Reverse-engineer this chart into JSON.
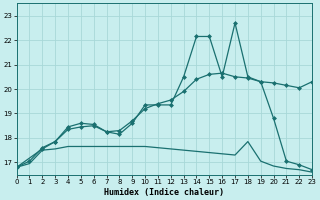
{
  "xlabel": "Humidex (Indice chaleur)",
  "background_color": "#c8eeee",
  "grid_color": "#a8d8d8",
  "line_color": "#1a7070",
  "xlim": [
    0,
    23
  ],
  "ylim": [
    16.5,
    23.5
  ],
  "yticks": [
    17,
    18,
    19,
    20,
    21,
    22,
    23
  ],
  "xticks": [
    0,
    1,
    2,
    3,
    4,
    5,
    6,
    7,
    8,
    9,
    10,
    11,
    12,
    13,
    14,
    15,
    16,
    17,
    18,
    19,
    20,
    21,
    22,
    23
  ],
  "line_jagged_x": [
    0,
    1,
    2,
    3,
    4,
    5,
    6,
    7,
    8,
    9,
    10,
    11,
    12,
    13,
    14,
    15,
    16,
    17,
    18,
    19,
    20,
    21,
    22,
    23
  ],
  "line_jagged_y": [
    16.8,
    17.05,
    17.6,
    17.85,
    18.45,
    18.6,
    18.55,
    18.25,
    18.15,
    18.6,
    19.35,
    19.35,
    19.35,
    20.5,
    22.15,
    22.15,
    20.5,
    22.7,
    20.5,
    20.3,
    18.8,
    17.05,
    16.9,
    16.7
  ],
  "line_rise_x": [
    0,
    2,
    3,
    4,
    5,
    6,
    7,
    8,
    9,
    10,
    11,
    12,
    13,
    14,
    15,
    16,
    17,
    18,
    19,
    20,
    21,
    22,
    23
  ],
  "line_rise_y": [
    16.8,
    17.55,
    17.85,
    18.35,
    18.45,
    18.5,
    18.25,
    18.3,
    18.7,
    19.2,
    19.4,
    19.55,
    19.9,
    20.4,
    20.6,
    20.65,
    20.5,
    20.45,
    20.3,
    20.25,
    20.15,
    20.05,
    20.3
  ],
  "line_flat_x": [
    0,
    1,
    2,
    3,
    4,
    5,
    6,
    7,
    8,
    9,
    10,
    11,
    12,
    13,
    14,
    15,
    16,
    17,
    18,
    19,
    20,
    21,
    22,
    23
  ],
  "line_flat_y": [
    16.8,
    16.95,
    17.5,
    17.55,
    17.65,
    17.65,
    17.65,
    17.65,
    17.65,
    17.65,
    17.65,
    17.6,
    17.55,
    17.5,
    17.45,
    17.4,
    17.35,
    17.3,
    17.85,
    17.05,
    16.85,
    16.75,
    16.7,
    16.6
  ]
}
